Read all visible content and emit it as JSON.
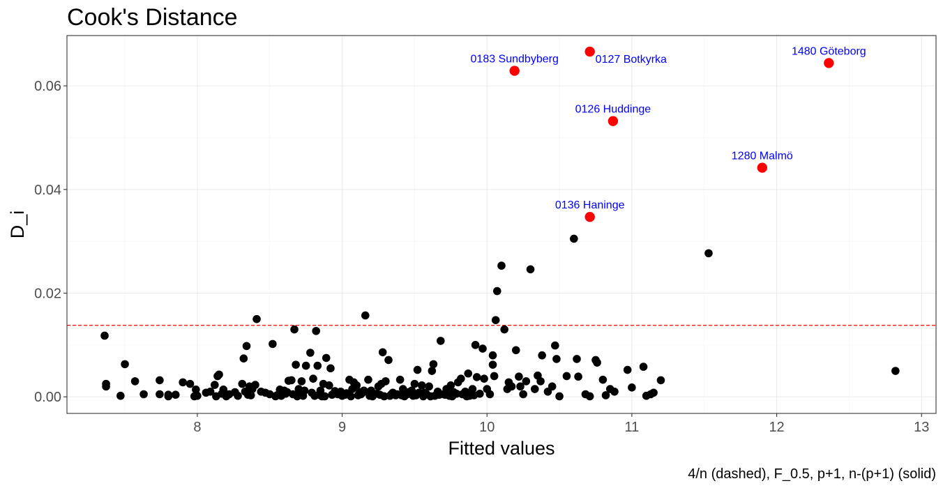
{
  "chart_data": {
    "type": "scatter",
    "title": "Cook's Distance",
    "xlabel": "Fitted values",
    "ylabel": "D_i",
    "caption": "4/n (dashed), F_0.5, p+1, n-(p+1) (solid)",
    "xlim": [
      7.1,
      13.1
    ],
    "ylim": [
      -0.0032,
      0.0697
    ],
    "xticks": [
      8,
      9,
      10,
      11,
      12,
      13
    ],
    "yticks": [
      0.0,
      0.02,
      0.04,
      0.06
    ],
    "xtick_labels": [
      "8",
      "9",
      "10",
      "11",
      "12",
      "13"
    ],
    "ytick_labels": [
      "0.00",
      "0.02",
      "0.04",
      "0.06"
    ],
    "grid": true,
    "reference_lines": [
      {
        "type": "dashed",
        "y": 0.0138,
        "color": "#ff0000"
      }
    ],
    "colors": {
      "normal": "#000000",
      "influential": "#ff0000",
      "annotation": "#0000ff"
    },
    "series": [
      {
        "points": [
          [
            7.36,
            0.0118
          ],
          [
            7.37,
            0.0025
          ],
          [
            7.37,
            0.002
          ],
          [
            7.47,
            0.0002
          ],
          [
            7.5,
            0.0063
          ],
          [
            7.57,
            0.003
          ],
          [
            7.63,
            0.0005
          ],
          [
            7.74,
            0.0032
          ],
          [
            7.74,
            0.0005
          ],
          [
            7.8,
            0.0001
          ],
          [
            7.8,
            0.0004
          ],
          [
            7.85,
            0.0004
          ],
          [
            7.9,
            0.0028
          ],
          [
            7.95,
            0.0025
          ],
          [
            7.98,
            0.0001
          ],
          [
            7.99,
            0.0014
          ],
          [
            8.06,
            0.0008
          ],
          [
            8.09,
            0.001
          ],
          [
            8.12,
            0.0023
          ],
          [
            8.14,
            0.004
          ],
          [
            8.15,
            0.0043
          ],
          [
            8.13,
            0.0001
          ],
          [
            8.18,
            0.0014
          ],
          [
            8.2,
            0.0001
          ],
          [
            8.22,
            0.0005
          ],
          [
            8.26,
            0.0009
          ],
          [
            8.28,
            0.0002
          ],
          [
            8.31,
            0.0025
          ],
          [
            8.32,
            0.0074
          ],
          [
            8.34,
            0.0098
          ],
          [
            8.33,
            0.001
          ],
          [
            8.35,
            0.0004
          ],
          [
            8.36,
            0.002
          ],
          [
            8.38,
            0.0015
          ],
          [
            8.4,
            0.0023
          ],
          [
            8.41,
            0.015
          ],
          [
            8.44,
            0.001
          ],
          [
            8.47,
            0.0008
          ],
          [
            8.5,
            0.0005
          ],
          [
            8.52,
            0.0102
          ],
          [
            8.55,
            0.0003
          ],
          [
            8.57,
            0.0014
          ],
          [
            8.6,
            0.0012
          ],
          [
            8.62,
            0.0009
          ],
          [
            8.63,
            0.0031
          ],
          [
            8.65,
            0.0032
          ],
          [
            8.67,
            0.013
          ],
          [
            8.68,
            0.0062
          ],
          [
            8.7,
            0.0015
          ],
          [
            8.72,
            0.003
          ],
          [
            8.74,
            0.0012
          ],
          [
            8.75,
            0.006
          ],
          [
            8.78,
            0.0085
          ],
          [
            8.8,
            0.0035
          ],
          [
            8.82,
            0.0127
          ],
          [
            8.83,
            0.006
          ],
          [
            8.85,
            0.0012
          ],
          [
            8.87,
            0.0025
          ],
          [
            8.89,
            0.0075
          ],
          [
            8.91,
            0.0022
          ],
          [
            8.92,
            0.0055
          ],
          [
            8.95,
            0.0011
          ],
          [
            8.97,
            0.0005
          ],
          [
            8.99,
            0.001
          ],
          [
            9.02,
            0.0004
          ],
          [
            9.05,
            0.0033
          ],
          [
            9.07,
            0.0015
          ],
          [
            9.08,
            0.0028
          ],
          [
            9.1,
            0.0022
          ],
          [
            9.12,
            0.0009
          ],
          [
            9.14,
            0.0008
          ],
          [
            9.16,
            0.0157
          ],
          [
            9.18,
            0.0033
          ],
          [
            9.2,
            0.0012
          ],
          [
            9.22,
            0.0005
          ],
          [
            9.25,
            0.002
          ],
          [
            9.27,
            0.0025
          ],
          [
            9.28,
            0.0086
          ],
          [
            9.3,
            0.003
          ],
          [
            9.32,
            0.0071
          ],
          [
            9.35,
            0.0008
          ],
          [
            9.37,
            0.0003
          ],
          [
            9.4,
            0.0033
          ],
          [
            9.42,
            0.0015
          ],
          [
            9.45,
            0.0005
          ],
          [
            9.48,
            0.0012
          ],
          [
            9.5,
            0.0025
          ],
          [
            9.52,
            0.0052
          ],
          [
            9.55,
            0.0022
          ],
          [
            9.57,
            0.0008
          ],
          [
            9.6,
            0.002
          ],
          [
            9.62,
            0.005
          ],
          [
            9.63,
            0.0063
          ],
          [
            9.66,
            0.001
          ],
          [
            9.68,
            0.0108
          ],
          [
            9.7,
            0.0005
          ],
          [
            9.72,
            0.0015
          ],
          [
            9.75,
            0.0022
          ],
          [
            9.77,
            0.0009
          ],
          [
            9.8,
            0.0028
          ],
          [
            9.82,
            0.0035
          ],
          [
            9.85,
            0.001
          ],
          [
            9.87,
            0.0045
          ],
          [
            9.9,
            0.0015
          ],
          [
            9.92,
            0.01
          ],
          [
            9.93,
            0.0038
          ],
          [
            9.97,
            0.0093
          ],
          [
            9.98,
            0.0035
          ],
          [
            10.0,
            0.0015
          ],
          [
            10.02,
            0.0005
          ],
          [
            10.04,
            0.008
          ],
          [
            10.04,
            0.0062
          ],
          [
            10.05,
            0.004
          ],
          [
            10.06,
            0.0148
          ],
          [
            10.07,
            0.0204
          ],
          [
            10.1,
            0.0253
          ],
          [
            10.12,
            0.013
          ],
          [
            10.14,
            0.0015
          ],
          [
            10.15,
            0.0028
          ],
          [
            10.17,
            0.002
          ],
          [
            10.2,
            0.009
          ],
          [
            10.22,
            0.0039
          ],
          [
            10.23,
            0.002
          ],
          [
            10.25,
            0.0005
          ],
          [
            10.27,
            0.003
          ],
          [
            10.3,
            0.0246
          ],
          [
            10.33,
            0.0015
          ],
          [
            10.35,
            0.0041
          ],
          [
            10.37,
            0.003
          ],
          [
            10.38,
            0.008
          ],
          [
            10.42,
            0.001
          ],
          [
            10.45,
            0.002
          ],
          [
            10.47,
            0.0099
          ],
          [
            10.48,
            0.0073
          ],
          [
            10.5,
            0.0001
          ],
          [
            10.55,
            0.004
          ],
          [
            10.6,
            0.0305
          ],
          [
            10.62,
            0.0073
          ],
          [
            10.63,
            0.0039
          ],
          [
            10.68,
            0.0005
          ],
          [
            10.71,
            0.0001
          ],
          [
            10.75,
            0.0071
          ],
          [
            10.76,
            0.0066
          ],
          [
            10.8,
            0.0033
          ],
          [
            10.82,
            0.0003
          ],
          [
            10.85,
            0.0015
          ],
          [
            10.88,
            0.001
          ],
          [
            10.97,
            0.0052
          ],
          [
            11.0,
            0.0018
          ],
          [
            11.08,
            0.0058
          ],
          [
            11.1,
            0.0002
          ],
          [
            11.13,
            0.0005
          ],
          [
            11.15,
            0.0008
          ],
          [
            11.2,
            0.0032
          ],
          [
            11.53,
            0.0277
          ],
          [
            12.82,
            0.005
          ],
          [
            8.0,
            0.0002
          ],
          [
            8.17,
            0.0006
          ],
          [
            8.37,
            0.0003
          ],
          [
            8.54,
            0.0001
          ],
          [
            8.66,
            0.0005
          ],
          [
            8.73,
            0.0002
          ],
          [
            8.79,
            0.0008
          ],
          [
            8.86,
            0.0001
          ],
          [
            8.93,
            0.0004
          ],
          [
            9.0,
            0.0002
          ],
          [
            9.03,
            0.0007
          ],
          [
            9.11,
            0.0003
          ],
          [
            9.15,
            0.0012
          ],
          [
            9.21,
            0.0001
          ],
          [
            9.24,
            0.0006
          ],
          [
            9.33,
            0.0002
          ],
          [
            9.38,
            0.0005
          ],
          [
            9.43,
            0.0001
          ],
          [
            9.46,
            0.0009
          ],
          [
            9.51,
            0.0003
          ],
          [
            9.56,
            0.0001
          ],
          [
            9.58,
            0.0006
          ],
          [
            9.64,
            0.0002
          ],
          [
            9.71,
            0.0004
          ],
          [
            9.76,
            0.0001
          ],
          [
            9.83,
            0.0005
          ],
          [
            9.88,
            0.0002
          ],
          [
            9.95,
            0.0006
          ],
          [
            8.58,
            0.0002
          ],
          [
            8.61,
            0.0006
          ],
          [
            8.69,
            0.0001
          ],
          [
            8.71,
            0.0005
          ],
          [
            8.81,
            0.0002
          ],
          [
            8.84,
            0.0004
          ],
          [
            8.88,
            0.0001
          ],
          [
            8.96,
            0.0006
          ],
          [
            9.06,
            0.0001
          ],
          [
            9.13,
            0.0005
          ],
          [
            9.19,
            0.0002
          ],
          [
            9.26,
            0.0004
          ],
          [
            9.29,
            0.0001
          ],
          [
            9.34,
            0.0005
          ],
          [
            9.41,
            0.0003
          ],
          [
            9.49,
            0.0002
          ],
          [
            9.53,
            0.0008
          ],
          [
            9.61,
            0.0001
          ],
          [
            9.67,
            0.0004
          ],
          [
            9.74,
            0.0002
          ],
          [
            9.79,
            0.0006
          ],
          [
            9.86,
            0.0001
          ],
          [
            9.91,
            0.0003
          ]
        ]
      },
      {
        "points": [
          [
            10.71,
            0.0666
          ],
          [
            10.19,
            0.0629
          ],
          [
            12.36,
            0.0644
          ],
          [
            10.87,
            0.0532
          ],
          [
            11.9,
            0.0442
          ],
          [
            10.71,
            0.0347
          ]
        ]
      }
    ],
    "annotations": [
      {
        "text": "0183 Sundbyberg",
        "x": 10.19,
        "y": 0.0629
      },
      {
        "text": "0127 Botkyrka",
        "x": 10.71,
        "y": 0.0666
      },
      {
        "text": "1480 Göteborg",
        "x": 12.36,
        "y": 0.0644
      },
      {
        "text": "0126 Huddinge",
        "x": 10.87,
        "y": 0.0532
      },
      {
        "text": "1280 Malmö",
        "x": 11.9,
        "y": 0.0442
      },
      {
        "text": "0136 Haninge",
        "x": 10.71,
        "y": 0.0347
      }
    ]
  }
}
